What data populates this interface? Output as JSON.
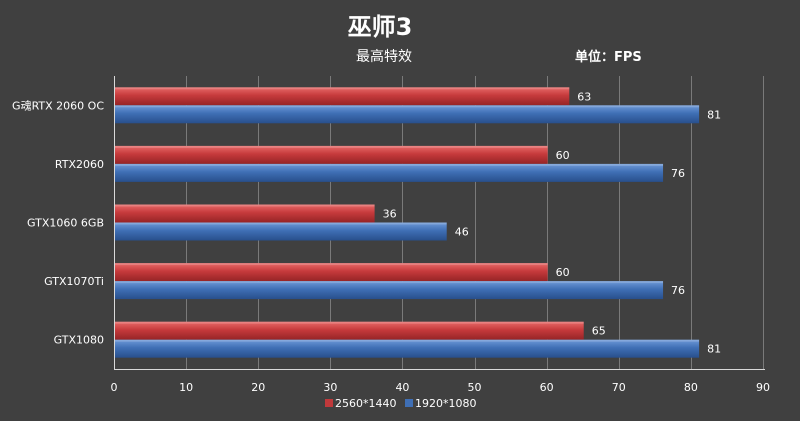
{
  "chart_data": {
    "type": "bar",
    "orientation": "horizontal",
    "title": "巫师3",
    "subtitle": "最高特效",
    "unit_label": "单位：FPS",
    "categories": [
      "G魂RTX 2060 OC",
      "RTX2060",
      "GTX1060 6GB",
      "GTX1070Ti",
      "GTX1080"
    ],
    "series": [
      {
        "name": "2560*1440",
        "values": [
          63,
          60,
          36,
          60,
          65
        ],
        "color": "#c0393b"
      },
      {
        "name": "1920*1080",
        "values": [
          81,
          76,
          46,
          76,
          81
        ],
        "color": "#3f6fb5"
      }
    ],
    "xlim": [
      0,
      90
    ],
    "xticks": [
      "0",
      "10",
      "20",
      "30",
      "40",
      "50",
      "60",
      "70",
      "80",
      "90"
    ],
    "grid": true,
    "legend_position": "bottom-center",
    "data_labels": true
  }
}
